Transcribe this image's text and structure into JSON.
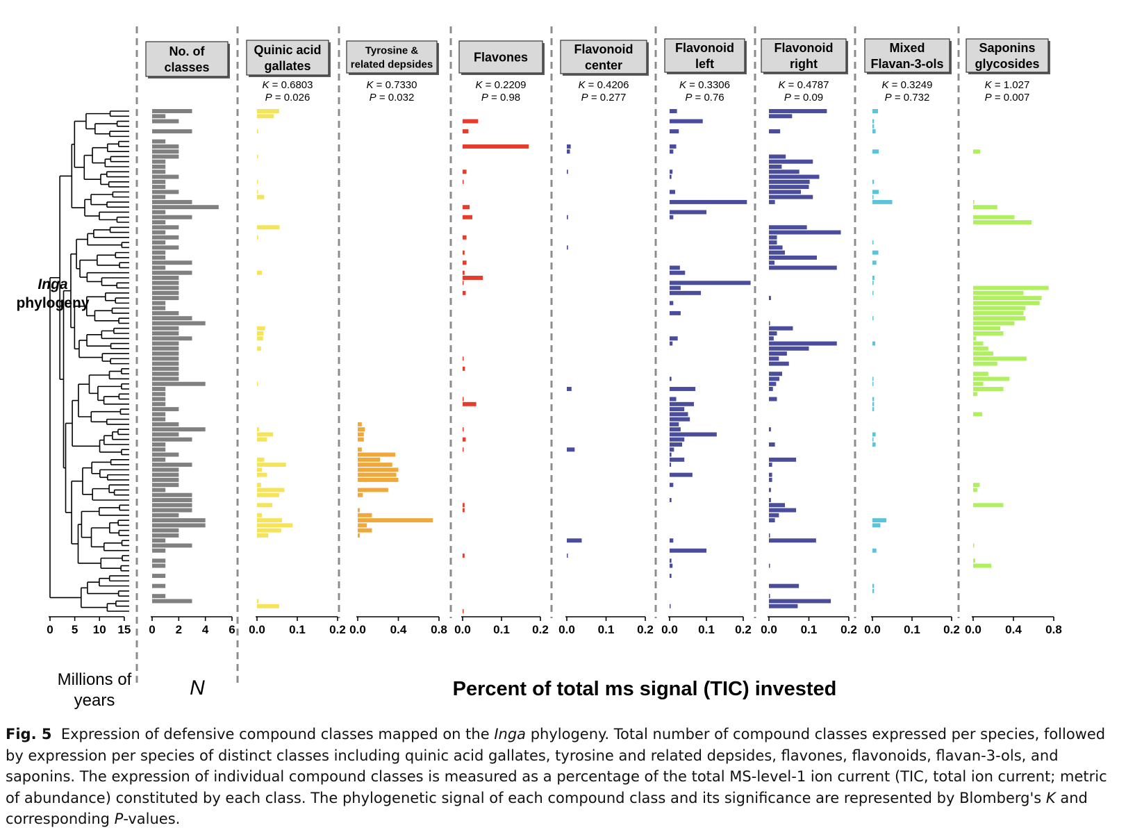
{
  "figure": {
    "phylogeny_label_italic": "Inga",
    "phylogeny_label": "phylogeny",
    "time_axis_label_1": "Millions of",
    "time_axis_label_2": "years",
    "n_axis_label": "N",
    "shared_x_label": "Percent of total ms signal (TIC) invested"
  },
  "caption": {
    "label": "Fig. 5",
    "p1": "Expression of defensive compound classes mapped on the ",
    "p1_italic": "Inga",
    "p2": " phylogeny. Total number of compound classes expressed per species, followed by expression per species of distinct classes including quinic acid gallates, tyrosine and related depsides, flavones, flavonoids, flavan-3-ols, and saponins. The expression of individual compound classes is measured as a percentage of the total MS-level-1 ion current (TIC, total ion current; metric of abundance) constituted by each class. The phylogenetic signal of each compound class and its significance are represented by Blomberg's ",
    "p2_italic": "K",
    "p3": " and corresponding ",
    "p3_italic": "P",
    "p4": "-values."
  },
  "colors": {
    "n_classes": "#808080",
    "quinic": "#F5E35A",
    "tyrosine": "#F0A83A",
    "flavones": "#E63C2C",
    "flav_center": "#4A4C9C",
    "flav_left": "#4A4C9C",
    "flav_right": "#4A4C9C",
    "flavan": "#5BC4DA",
    "saponins": "#B0F060"
  },
  "chart_data": [
    {
      "id": "phylogeny",
      "type": "tree",
      "xlabel": "Millions of years",
      "ticks": [
        "0",
        "5",
        "10",
        "15"
      ],
      "xlim": [
        0,
        16
      ],
      "n_species": 100
    },
    {
      "id": "n_classes",
      "type": "bar",
      "title": "No. of classes",
      "xlabel": "N",
      "ticks": [
        "0",
        "2",
        "4",
        "6"
      ],
      "xlim": [
        0,
        6
      ],
      "values": [
        3,
        1,
        2,
        0,
        3,
        0,
        1,
        2,
        2,
        2,
        1,
        1,
        1,
        2,
        1,
        1,
        2,
        1,
        3,
        5,
        1,
        3,
        1,
        2,
        1,
        2,
        1,
        2,
        1,
        1,
        3,
        1,
        3,
        2,
        2,
        2,
        2,
        2,
        1,
        1,
        2,
        3,
        4,
        2,
        2,
        3,
        2,
        2,
        2,
        2,
        2,
        2,
        2,
        2,
        4,
        1,
        1,
        1,
        1,
        2,
        1,
        1,
        2,
        4,
        2,
        3,
        1,
        1,
        2,
        1,
        3,
        2,
        2,
        2,
        2,
        1,
        3,
        3,
        3,
        3,
        2,
        4,
        4,
        2,
        2,
        1,
        3,
        1,
        0,
        1,
        1,
        0,
        1,
        0,
        1,
        0,
        1,
        3,
        0,
        0
      ]
    },
    {
      "id": "quinic",
      "type": "bar",
      "title": "Quinic acid gallates",
      "K": "0.6803",
      "P": "0.026",
      "ticks": [
        "0.0",
        "0.1",
        "0.2"
      ],
      "xlim": [
        0,
        0.2
      ],
      "values": [
        0.055,
        0.042,
        0,
        0,
        0.003,
        0,
        0,
        0,
        0,
        0.002,
        0,
        0,
        0,
        0,
        0.002,
        0,
        0.002,
        0.018,
        0,
        0,
        0,
        0,
        0,
        0.056,
        0,
        0.003,
        0,
        0,
        0,
        0,
        0,
        0,
        0.012,
        0,
        0,
        0,
        0,
        0,
        0,
        0,
        0,
        0,
        0,
        0.02,
        0.016,
        0.015,
        0,
        0.01,
        0,
        0,
        0,
        0,
        0,
        0,
        0.002,
        0,
        0,
        0,
        0,
        0,
        0,
        0,
        0,
        0.005,
        0.04,
        0.025,
        0,
        0,
        0,
        0.018,
        0.072,
        0.012,
        0.025,
        0,
        0.01,
        0.068,
        0.055,
        0,
        0.038,
        0,
        0.012,
        0.062,
        0.088,
        0.06,
        0.028,
        0,
        0,
        0,
        0,
        0,
        0,
        0,
        0,
        0,
        0,
        0,
        0,
        0.004,
        0.055,
        0
      ]
    },
    {
      "id": "tyrosine",
      "type": "bar",
      "title": "Tyrosine & related depsides",
      "K": "0.7330",
      "P": "0.032",
      "ticks": [
        "0.0",
        "0.4",
        "0.8"
      ],
      "xlim": [
        0,
        0.8
      ],
      "values": [
        0,
        0,
        0,
        0,
        0,
        0,
        0,
        0,
        0,
        0,
        0,
        0,
        0,
        0,
        0,
        0,
        0,
        0,
        0,
        0,
        0,
        0,
        0,
        0,
        0,
        0,
        0,
        0,
        0,
        0,
        0,
        0,
        0,
        0,
        0,
        0,
        0,
        0,
        0,
        0,
        0,
        0,
        0,
        0,
        0,
        0,
        0,
        0,
        0,
        0,
        0,
        0,
        0,
        0,
        0,
        0,
        0,
        0,
        0,
        0,
        0,
        0,
        0.04,
        0.07,
        0.06,
        0.06,
        0,
        0.04,
        0.37,
        0.22,
        0.34,
        0.4,
        0.38,
        0.4,
        0,
        0.3,
        0.05,
        0,
        0,
        0.02,
        0.14,
        0.74,
        0.09,
        0.14,
        0.02,
        0,
        0,
        0,
        0,
        0,
        0,
        0,
        0,
        0,
        0,
        0,
        0,
        0,
        0,
        0
      ]
    },
    {
      "id": "flavones",
      "type": "bar",
      "title": "Flavones",
      "K": "0.2209",
      "P": "0.98",
      "ticks": [
        "0.0",
        "0.1",
        "0.2"
      ],
      "xlim": [
        0,
        0.2
      ],
      "values": [
        0,
        0,
        0.04,
        0,
        0.015,
        0,
        0,
        0.17,
        0,
        0,
        0,
        0,
        0.01,
        0,
        0.002,
        0,
        0,
        0,
        0,
        0.018,
        0,
        0.025,
        0,
        0,
        0,
        0.01,
        0,
        0,
        0.005,
        0,
        0.01,
        0,
        0.005,
        0.052,
        0.002,
        0,
        0.008,
        0,
        0,
        0,
        0,
        0,
        0,
        0,
        0,
        0,
        0,
        0,
        0,
        0.002,
        0,
        0.006,
        0,
        0,
        0,
        0,
        0,
        0.002,
        0.035,
        0,
        0,
        0,
        0,
        0.002,
        0,
        0.008,
        0,
        0.002,
        0,
        0,
        0,
        0,
        0,
        0,
        0,
        0,
        0,
        0,
        0.005,
        0.005,
        0,
        0,
        0,
        0,
        0,
        0,
        0,
        0,
        0.005,
        0,
        0,
        0,
        0,
        0,
        0,
        0,
        0,
        0,
        0,
        0.002
      ]
    },
    {
      "id": "flav_center",
      "type": "bar",
      "title": "Flavonoid center",
      "K": "0.4206",
      "P": "0.277",
      "ticks": [
        "0.0",
        "0.1",
        "0.2"
      ],
      "xlim": [
        0,
        0.2
      ],
      "values": [
        0,
        0,
        0,
        0,
        0,
        0,
        0,
        0.01,
        0.008,
        0,
        0,
        0,
        0.003,
        0,
        0,
        0,
        0,
        0,
        0,
        0,
        0,
        0.003,
        0,
        0,
        0,
        0,
        0,
        0.003,
        0,
        0,
        0,
        0,
        0,
        0,
        0,
        0,
        0,
        0,
        0,
        0,
        0,
        0,
        0,
        0,
        0,
        0,
        0,
        0,
        0,
        0,
        0,
        0,
        0,
        0,
        0,
        0.012,
        0,
        0,
        0,
        0,
        0,
        0,
        0,
        0,
        0,
        0,
        0,
        0.02,
        0,
        0,
        0,
        0,
        0,
        0,
        0,
        0,
        0,
        0,
        0,
        0,
        0,
        0,
        0,
        0,
        0,
        0.038,
        0,
        0,
        0.002,
        0,
        0,
        0,
        0,
        0,
        0,
        0,
        0,
        0,
        0,
        0
      ]
    },
    {
      "id": "flav_left",
      "type": "bar",
      "title": "Flavonoid left",
      "K": "0.3306",
      "P": "0.76",
      "ticks": [
        "0.0",
        "0.1",
        "0.2"
      ],
      "xlim": [
        0,
        0.2
      ],
      "values": [
        0.02,
        0,
        0.09,
        0,
        0.025,
        0,
        0,
        0.018,
        0.01,
        0,
        0,
        0,
        0.008,
        0.005,
        0,
        0,
        0.015,
        0,
        0.21,
        0,
        0.1,
        0.01,
        0,
        0,
        0,
        0,
        0,
        0,
        0,
        0,
        0,
        0.028,
        0.042,
        0,
        0.22,
        0.03,
        0.085,
        0,
        0.01,
        0,
        0.03,
        0,
        0,
        0,
        0,
        0.022,
        0.008,
        0,
        0,
        0,
        0,
        0,
        0,
        0.005,
        0,
        0.07,
        0,
        0.018,
        0.066,
        0.04,
        0.05,
        0.055,
        0.025,
        0.03,
        0.128,
        0.04,
        0.034,
        0.012,
        0.005,
        0.04,
        0.004,
        0,
        0.062,
        0,
        0.01,
        0,
        0,
        0.005,
        0,
        0,
        0,
        0,
        0,
        0,
        0,
        0.01,
        0,
        0.1,
        0,
        0.005,
        0.008,
        0,
        0.005,
        0,
        0,
        0,
        0,
        0,
        0.002,
        0
      ]
    },
    {
      "id": "flav_right",
      "type": "bar",
      "title": "Flavonoid right",
      "K": "0.4787",
      "P": "0.09",
      "ticks": [
        "0.0",
        "0.1",
        "0.2"
      ],
      "xlim": [
        0,
        0.2
      ],
      "values": [
        0.145,
        0.058,
        0,
        0,
        0.028,
        0,
        0,
        0,
        0,
        0.042,
        0.11,
        0.032,
        0.076,
        0.126,
        0.102,
        0.1,
        0.08,
        0.11,
        0.015,
        0,
        0,
        0,
        0,
        0.095,
        0.18,
        0.02,
        0.02,
        0.034,
        0.04,
        0.12,
        0.014,
        0.17,
        0,
        0,
        0,
        0,
        0,
        0.005,
        0,
        0,
        0,
        0,
        0.002,
        0.06,
        0.02,
        0.012,
        0.17,
        0.1,
        0.045,
        0.025,
        0.05,
        0,
        0.033,
        0.026,
        0.018,
        0.01,
        0,
        0.02,
        0,
        0,
        0,
        0,
        0,
        0.005,
        0,
        0,
        0.015,
        0,
        0,
        0.068,
        0.008,
        0,
        0.008,
        0.008,
        0,
        0.005,
        0,
        0.005,
        0.04,
        0.068,
        0.025,
        0.015,
        0,
        0,
        0.002,
        0.118,
        0,
        0,
        0,
        0,
        0.002,
        0,
        0,
        0,
        0.075,
        0,
        0.002,
        0.155,
        0.072,
        0
      ]
    },
    {
      "id": "flavan",
      "type": "bar",
      "title": "Mixed Flavan-3-ols",
      "K": "0.3249",
      "P": "0.732",
      "ticks": [
        "0.0",
        "0.1",
        "0.2"
      ],
      "xlim": [
        0,
        0.2
      ],
      "values": [
        0.014,
        0,
        0.004,
        0.004,
        0.008,
        0,
        0,
        0,
        0.016,
        0,
        0,
        0,
        0,
        0,
        0.004,
        0,
        0.016,
        0.002,
        0.05,
        0,
        0,
        0,
        0,
        0,
        0,
        0,
        0.002,
        0,
        0.015,
        0,
        0.01,
        0,
        0,
        0.005,
        0.003,
        0,
        0.002,
        0,
        0,
        0,
        0,
        0.002,
        0,
        0,
        0,
        0,
        0.007,
        0,
        0,
        0,
        0,
        0,
        0,
        0.002,
        0.002,
        0,
        0,
        0.004,
        0.004,
        0.004,
        0,
        0,
        0,
        0,
        0.008,
        0.002,
        0.008,
        0,
        0,
        0,
        0,
        0,
        0,
        0,
        0,
        0,
        0,
        0,
        0,
        0,
        0,
        0.035,
        0.02,
        0,
        0,
        0,
        0,
        0.01,
        0,
        0,
        0,
        0,
        0,
        0,
        0.004,
        0.004,
        0,
        0,
        0,
        0
      ]
    },
    {
      "id": "saponins",
      "type": "bar",
      "title": "Saponins glycosides",
      "K": "1.027",
      "P": "0.007",
      "ticks": [
        "0.0",
        "0.4",
        "0.8"
      ],
      "xlim": [
        0,
        0.8
      ],
      "values": [
        0,
        0,
        0,
        0,
        0,
        0,
        0,
        0,
        0.07,
        0,
        0,
        0,
        0,
        0,
        0,
        0,
        0,
        0,
        0.005,
        0.24,
        0,
        0.41,
        0.58,
        0,
        0,
        0,
        0,
        0,
        0,
        0,
        0,
        0,
        0,
        0,
        0,
        0.75,
        0.5,
        0.68,
        0.66,
        0.52,
        0.5,
        0.52,
        0.41,
        0.27,
        0.3,
        0.03,
        0.1,
        0.15,
        0.2,
        0.53,
        0.24,
        0,
        0.15,
        0.36,
        0.1,
        0.3,
        0.04,
        0,
        0,
        0,
        0.09,
        0,
        0,
        0,
        0,
        0,
        0,
        0,
        0,
        0,
        0,
        0,
        0,
        0,
        0.065,
        0.04,
        0,
        0,
        0.3,
        0,
        0,
        0,
        0,
        0,
        0,
        0,
        0.005,
        0,
        0,
        0.02,
        0.18,
        0,
        0,
        0,
        0,
        0,
        0,
        0,
        0,
        0
      ]
    }
  ]
}
